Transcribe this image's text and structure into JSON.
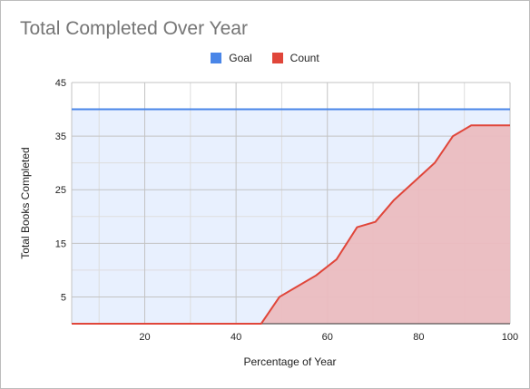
{
  "chart_data": {
    "type": "area",
    "title": "Total Completed Over Year",
    "xlabel": "Percentage of Year",
    "ylabel": "Total Books Completed",
    "xlim": [
      4,
      100
    ],
    "ylim": [
      0,
      45
    ],
    "x_ticks": [
      20,
      40,
      60,
      80,
      100
    ],
    "x_minor_ticks": [
      10,
      30,
      50,
      70,
      90
    ],
    "y_ticks": [
      5,
      15,
      25,
      35,
      45
    ],
    "y_minor_ticks": [
      10,
      20,
      30,
      40
    ],
    "grid": true,
    "legend_position": "top",
    "series": [
      {
        "name": "Goal",
        "color": "#4a86e8",
        "fill": "#e8f0fe",
        "points": [
          [
            4,
            40
          ],
          [
            100,
            40
          ]
        ]
      },
      {
        "name": "Count",
        "color": "#e0463a",
        "fill": "#ebbcc0",
        "points": [
          [
            4,
            0
          ],
          [
            45.5,
            0
          ],
          [
            49.5,
            5
          ],
          [
            53.5,
            7
          ],
          [
            57.5,
            9
          ],
          [
            62,
            12
          ],
          [
            66.5,
            18
          ],
          [
            70.5,
            19
          ],
          [
            74.5,
            23
          ],
          [
            79,
            26.5
          ],
          [
            83.5,
            30
          ],
          [
            87.5,
            35
          ],
          [
            91.5,
            37
          ],
          [
            100,
            37
          ]
        ]
      }
    ]
  }
}
